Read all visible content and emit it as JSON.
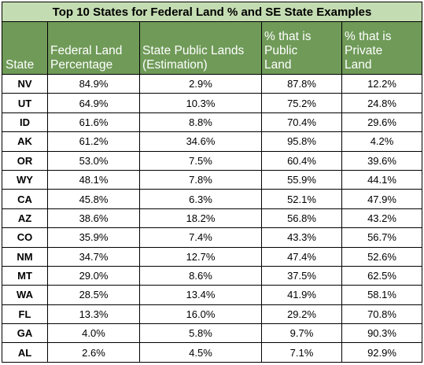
{
  "title": "Top 10 States for Federal Land % and SE State Examples",
  "columns": [
    {
      "line1": "",
      "line2": "",
      "line3": "State"
    },
    {
      "line1": "",
      "line2": "Federal Land",
      "line3": "Percentage"
    },
    {
      "line1": "",
      "line2": "State Public Lands",
      "line3": "(Estimation)"
    },
    {
      "line1": "% that is",
      "line2": "Public",
      "line3": "Land"
    },
    {
      "line1": "% that is",
      "line2": "Private",
      "line3": "Land"
    }
  ],
  "rows": [
    [
      "NV",
      "84.9%",
      "2.9%",
      "87.8%",
      "12.2%"
    ],
    [
      "UT",
      "64.9%",
      "10.3%",
      "75.2%",
      "24.8%"
    ],
    [
      "ID",
      "61.6%",
      "8.8%",
      "70.4%",
      "29.6%"
    ],
    [
      "AK",
      "61.2%",
      "34.6%",
      "95.8%",
      "4.2%"
    ],
    [
      "OR",
      "53.0%",
      "7.5%",
      "60.4%",
      "39.6%"
    ],
    [
      "WY",
      "48.1%",
      "7.8%",
      "55.9%",
      "44.1%"
    ],
    [
      "CA",
      "45.8%",
      "6.3%",
      "52.1%",
      "47.9%"
    ],
    [
      "AZ",
      "38.6%",
      "18.2%",
      "56.8%",
      "43.2%"
    ],
    [
      "CO",
      "35.9%",
      "7.4%",
      "43.3%",
      "56.7%"
    ],
    [
      "NM",
      "34.7%",
      "12.7%",
      "47.4%",
      "52.6%"
    ],
    [
      "MT",
      "29.0%",
      "8.6%",
      "37.5%",
      "62.5%"
    ],
    [
      "WA",
      "28.5%",
      "13.4%",
      "41.9%",
      "58.1%"
    ],
    [
      "FL",
      "13.3%",
      "16.0%",
      "29.2%",
      "70.8%"
    ],
    [
      "GA",
      "4.0%",
      "5.8%",
      "9.7%",
      "90.3%"
    ],
    [
      "AL",
      "2.6%",
      "4.5%",
      "7.1%",
      "92.9%"
    ]
  ]
}
